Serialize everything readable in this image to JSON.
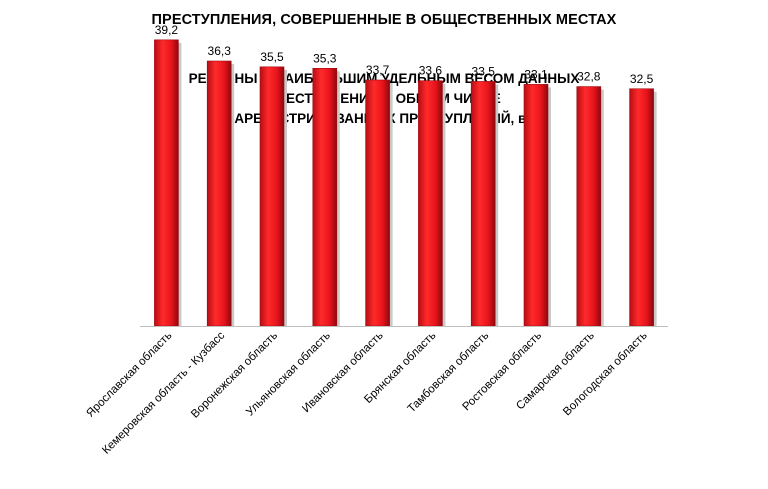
{
  "header": {
    "title": "ПРЕСТУПЛЕНИЯ, СОВЕРШЕННЫЕ В ОБЩЕСТВЕННЫХ МЕСТАХ"
  },
  "chart_data": {
    "type": "bar",
    "title_lines": [
      "РЕГИОНЫ С НАИБОЛЬШИМ УДЕЛЬНЫМ ВЕСОМ ДАННЫХ",
      "ПРЕСТУПЛЕНИЙ В ОБЩЕМ ЧИСЛЕ",
      "ЗАРЕГИСТРИРОВАННЫХ ПРЕСТУПЛЕНИЙ, в %"
    ],
    "categories": [
      "Ярославская область",
      "Кемеровская область - Кузбасс",
      "Воронежская область",
      "Ульяновская область",
      "Ивановская область",
      "Брянская область",
      "Тамбовская область",
      "Ростовская область",
      "Самарская область",
      "Вологодская область"
    ],
    "values": [
      39.2,
      36.3,
      35.5,
      35.3,
      33.7,
      33.6,
      33.5,
      33.1,
      32.8,
      32.5
    ],
    "value_labels": [
      "39,2",
      "36,3",
      "35,5",
      "35,3",
      "33,7",
      "33,6",
      "33,5",
      "33,1",
      "32,8",
      "32,5"
    ],
    "ylim": [
      0,
      40
    ],
    "grid": false,
    "legend": "none",
    "colors": {
      "bar": "#e8141c",
      "bar_dark": "#9e0a10",
      "axis": "#bfbfbf"
    }
  }
}
